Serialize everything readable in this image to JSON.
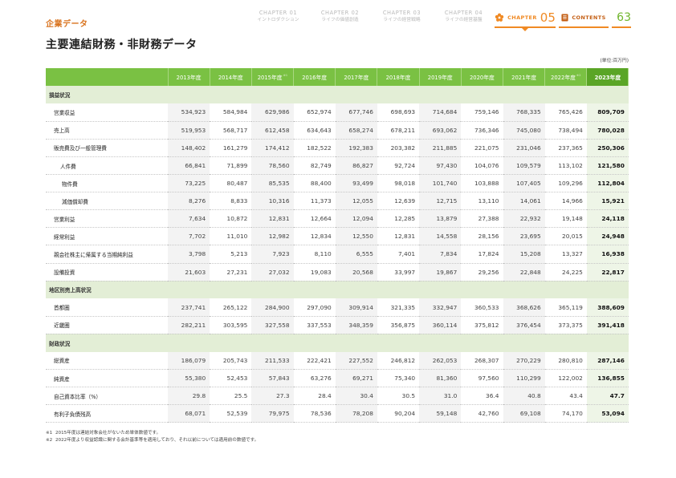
{
  "header": {
    "section_label": "企業データ",
    "chapters": [
      {
        "num": "CHAPTER 01",
        "name": "イントロダクション"
      },
      {
        "num": "CHAPTER 02",
        "name": "ライフの価値創造"
      },
      {
        "num": "CHAPTER 03",
        "name": "ライフの経営戦略"
      },
      {
        "num": "CHAPTER 04",
        "name": "ライフの経営基盤"
      }
    ],
    "current_chapter": {
      "label": "CHAPTER",
      "number": "05"
    },
    "contents_label": "CONTENTS",
    "page_number": "63",
    "accent_color": "#f08a24",
    "green_color": "#7ac143"
  },
  "title": "主要連結財務・非財務データ",
  "unit": "(単位:百万円)",
  "table": {
    "years": [
      {
        "label": "2013年度",
        "note": ""
      },
      {
        "label": "2014年度",
        "note": ""
      },
      {
        "label": "2015年度",
        "note": "※1"
      },
      {
        "label": "2016年度",
        "note": ""
      },
      {
        "label": "2017年度",
        "note": ""
      },
      {
        "label": "2018年度",
        "note": ""
      },
      {
        "label": "2019年度",
        "note": ""
      },
      {
        "label": "2020年度",
        "note": ""
      },
      {
        "label": "2021年度",
        "note": ""
      },
      {
        "label": "2022年度",
        "note": "※2"
      },
      {
        "label": "2023年度",
        "note": ""
      }
    ],
    "sections": [
      {
        "title": "損益状況",
        "rows": [
          {
            "label": "営業収益",
            "indent": 0,
            "values": [
              "534,923",
              "584,984",
              "629,986",
              "652,974",
              "677,746",
              "698,693",
              "714,684",
              "759,146",
              "768,335",
              "765,426",
              "809,709"
            ]
          },
          {
            "label": "売上高",
            "indent": 0,
            "values": [
              "519,953",
              "568,717",
              "612,458",
              "634,643",
              "658,274",
              "678,211",
              "693,062",
              "736,346",
              "745,080",
              "738,494",
              "780,028"
            ]
          },
          {
            "label": "販売費及び一般管理費",
            "indent": 0,
            "values": [
              "148,402",
              "161,279",
              "174,412",
              "182,522",
              "192,383",
              "203,382",
              "211,885",
              "221,075",
              "231,046",
              "237,365",
              "250,306"
            ]
          },
          {
            "label": "人件費",
            "indent": 1,
            "values": [
              "66,841",
              "71,899",
              "78,560",
              "82,749",
              "86,827",
              "92,724",
              "97,430",
              "104,076",
              "109,579",
              "113,102",
              "121,580"
            ]
          },
          {
            "label": "物件費",
            "indent": 2,
            "values": [
              "73,225",
              "80,487",
              "85,535",
              "88,400",
              "93,499",
              "98,018",
              "101,740",
              "103,888",
              "107,405",
              "109,296",
              "112,804"
            ]
          },
          {
            "label": "減価償却費",
            "indent": 2,
            "values": [
              "8,276",
              "8,833",
              "10,316",
              "11,373",
              "12,055",
              "12,639",
              "12,715",
              "13,110",
              "14,061",
              "14,966",
              "15,921"
            ]
          },
          {
            "label": "営業利益",
            "indent": 0,
            "values": [
              "7,634",
              "10,872",
              "12,831",
              "12,664",
              "12,094",
              "12,285",
              "13,879",
              "27,388",
              "22,932",
              "19,148",
              "24,118"
            ]
          },
          {
            "label": "経常利益",
            "indent": 0,
            "values": [
              "7,702",
              "11,010",
              "12,982",
              "12,834",
              "12,550",
              "12,831",
              "14,558",
              "28,156",
              "23,695",
              "20,015",
              "24,948"
            ]
          },
          {
            "label": "親会社株主に帰属する当期純利益",
            "indent": 0,
            "values": [
              "3,798",
              "5,213",
              "7,923",
              "8,110",
              "6,555",
              "7,401",
              "7,834",
              "17,824",
              "15,208",
              "13,327",
              "16,938"
            ]
          },
          {
            "label": "設備投資",
            "indent": 0,
            "values": [
              "21,603",
              "27,231",
              "27,032",
              "19,083",
              "20,568",
              "33,997",
              "19,867",
              "29,256",
              "22,848",
              "24,225",
              "22,817"
            ]
          }
        ]
      },
      {
        "title": "地区別売上高状況",
        "rows": [
          {
            "label": "首都圏",
            "indent": 0,
            "values": [
              "237,741",
              "265,122",
              "284,900",
              "297,090",
              "309,914",
              "321,335",
              "332,947",
              "360,533",
              "368,626",
              "365,119",
              "388,609"
            ]
          },
          {
            "label": "近畿圏",
            "indent": 0,
            "values": [
              "282,211",
              "303,595",
              "327,558",
              "337,553",
              "348,359",
              "356,875",
              "360,114",
              "375,812",
              "376,454",
              "373,375",
              "391,418"
            ]
          }
        ]
      },
      {
        "title": "財政状況",
        "rows": [
          {
            "label": "総資産",
            "indent": 0,
            "values": [
              "186,079",
              "205,743",
              "211,533",
              "222,421",
              "227,552",
              "246,812",
              "262,053",
              "268,307",
              "270,229",
              "280,810",
              "287,146"
            ]
          },
          {
            "label": "純資産",
            "indent": 0,
            "values": [
              "55,380",
              "52,453",
              "57,843",
              "63,276",
              "69,271",
              "75,340",
              "81,360",
              "97,560",
              "110,299",
              "122,002",
              "136,855"
            ]
          },
          {
            "label": "自己資本比率（%）",
            "indent": 0,
            "values": [
              "29.8",
              "25.5",
              "27.3",
              "28.4",
              "30.4",
              "30.5",
              "31.0",
              "36.4",
              "40.8",
              "43.4",
              "47.7"
            ]
          },
          {
            "label": "有利子負債残高",
            "indent": 0,
            "values": [
              "68,071",
              "52,539",
              "79,975",
              "78,536",
              "78,208",
              "90,204",
              "59,148",
              "42,760",
              "69,108",
              "74,170",
              "53,094"
            ]
          }
        ]
      }
    ]
  },
  "notes": [
    {
      "mark": "※1",
      "text": "2015年度は連結対象会社がないため単体数値です。"
    },
    {
      "mark": "※2",
      "text": "2022年度より収益認識に関する会計基準等を適用しており、それ以前については適用前の数値です。"
    }
  ]
}
